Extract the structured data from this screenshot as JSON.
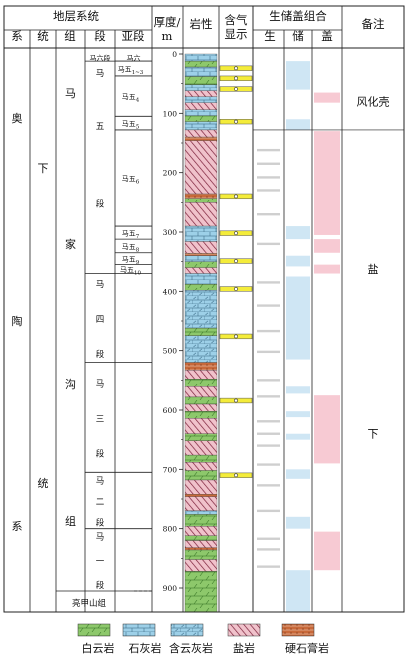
{
  "header": {
    "stratigraphy": "地层系统",
    "system": "系",
    "series": "统",
    "formation": "组",
    "member": "段",
    "submember": "亚段",
    "thickness_line1": "厚度/",
    "thickness_line2": "m",
    "lithology": "岩性",
    "gas_line1": "含气",
    "gas_line2": "显示",
    "assemblage": "生储盖组合",
    "source": "生",
    "reservoir": "储",
    "cap": "盖",
    "remarks": "备注"
  },
  "system_chars": [
    "奥",
    "陶",
    "系"
  ],
  "series_chars": [
    "下",
    "统"
  ],
  "formation_chars": [
    "马",
    "家",
    "沟",
    "组"
  ],
  "formation_bottom": "亮甲山组",
  "members": [
    {
      "name": "马六段",
      "chars": [
        "马六段"
      ],
      "top": 0,
      "bottom": 12
    },
    {
      "name": "马五段",
      "chars": [
        "马",
        "五",
        "段"
      ],
      "top": 12,
      "bottom": 370
    },
    {
      "name": "马四段",
      "chars": [
        "马",
        "四",
        "段"
      ],
      "top": 370,
      "bottom": 520
    },
    {
      "name": "马三段",
      "chars": [
        "马",
        "三",
        "段"
      ],
      "top": 520,
      "bottom": 705
    },
    {
      "name": "马二段",
      "chars": [
        "马",
        "二",
        "段"
      ],
      "top": 705,
      "bottom": 800
    },
    {
      "name": "马一段",
      "chars": [
        "马",
        "一",
        "段"
      ],
      "top": 800,
      "bottom": 905
    }
  ],
  "submembers": [
    {
      "base": "马六",
      "sub": "",
      "top": 0,
      "bottom": 12
    },
    {
      "base": "马五",
      "sub": "1~3",
      "top": 12,
      "bottom": 37
    },
    {
      "base": "马五",
      "sub": "4",
      "top": 37,
      "bottom": 105
    },
    {
      "base": "马五",
      "sub": "5",
      "top": 105,
      "bottom": 128
    },
    {
      "base": "马五",
      "sub": "6",
      "top": 128,
      "bottom": 290
    },
    {
      "base": "马五",
      "sub": "7",
      "top": 290,
      "bottom": 312
    },
    {
      "base": "马五",
      "sub": "8",
      "top": 312,
      "bottom": 335
    },
    {
      "base": "马五",
      "sub": "9",
      "top": 335,
      "bottom": 355
    },
    {
      "base": "马五",
      "sub": "10",
      "top": 355,
      "bottom": 370
    }
  ],
  "depth_axis": {
    "unit": "m",
    "min": 0,
    "max": 940,
    "ticks": [
      0,
      100,
      200,
      300,
      400,
      500,
      600,
      700,
      800,
      900
    ]
  },
  "lithology_column": [
    {
      "top": 0,
      "bottom": 12,
      "type": "limestone"
    },
    {
      "top": 12,
      "bottom": 22,
      "type": "dolomite"
    },
    {
      "top": 22,
      "bottom": 38,
      "type": "limestone"
    },
    {
      "top": 38,
      "bottom": 52,
      "type": "dolomite"
    },
    {
      "top": 52,
      "bottom": 62,
      "type": "limestone"
    },
    {
      "top": 62,
      "bottom": 72,
      "type": "salt"
    },
    {
      "top": 72,
      "bottom": 82,
      "type": "limestone"
    },
    {
      "top": 82,
      "bottom": 94,
      "type": "salt"
    },
    {
      "top": 94,
      "bottom": 104,
      "type": "limestone"
    },
    {
      "top": 104,
      "bottom": 114,
      "type": "dolomite"
    },
    {
      "top": 114,
      "bottom": 128,
      "type": "limestone"
    },
    {
      "top": 128,
      "bottom": 140,
      "type": "salt"
    },
    {
      "top": 140,
      "bottom": 146,
      "type": "anhydrite"
    },
    {
      "top": 146,
      "bottom": 236,
      "type": "salt"
    },
    {
      "top": 236,
      "bottom": 244,
      "type": "anhydrite"
    },
    {
      "top": 244,
      "bottom": 250,
      "type": "dolomite"
    },
    {
      "top": 250,
      "bottom": 290,
      "type": "salt"
    },
    {
      "top": 290,
      "bottom": 316,
      "type": "limestone"
    },
    {
      "top": 316,
      "bottom": 336,
      "type": "salt"
    },
    {
      "top": 336,
      "bottom": 340,
      "type": "anhydrite"
    },
    {
      "top": 340,
      "bottom": 350,
      "type": "limestone"
    },
    {
      "top": 350,
      "bottom": 360,
      "type": "dolomite"
    },
    {
      "top": 360,
      "bottom": 370,
      "type": "salt"
    },
    {
      "top": 370,
      "bottom": 388,
      "type": "limestone"
    },
    {
      "top": 388,
      "bottom": 398,
      "type": "dolomite"
    },
    {
      "top": 398,
      "bottom": 462,
      "type": "dolomitic_limestone"
    },
    {
      "top": 462,
      "bottom": 475,
      "type": "dolomite"
    },
    {
      "top": 475,
      "bottom": 520,
      "type": "dolomitic_limestone"
    },
    {
      "top": 520,
      "bottom": 533,
      "type": "anhydrite"
    },
    {
      "top": 533,
      "bottom": 548,
      "type": "salt"
    },
    {
      "top": 548,
      "bottom": 560,
      "type": "dolomite"
    },
    {
      "top": 560,
      "bottom": 578,
      "type": "salt"
    },
    {
      "top": 578,
      "bottom": 590,
      "type": "dolomite"
    },
    {
      "top": 590,
      "bottom": 602,
      "type": "salt"
    },
    {
      "top": 602,
      "bottom": 614,
      "type": "dolomite"
    },
    {
      "top": 614,
      "bottom": 640,
      "type": "salt"
    },
    {
      "top": 640,
      "bottom": 652,
      "type": "dolomite"
    },
    {
      "top": 652,
      "bottom": 676,
      "type": "salt"
    },
    {
      "top": 676,
      "bottom": 688,
      "type": "dolomite"
    },
    {
      "top": 688,
      "bottom": 702,
      "type": "salt"
    },
    {
      "top": 702,
      "bottom": 718,
      "type": "dolomite"
    },
    {
      "top": 718,
      "bottom": 742,
      "type": "salt"
    },
    {
      "top": 742,
      "bottom": 746,
      "type": "anhydrite"
    },
    {
      "top": 746,
      "bottom": 770,
      "type": "salt"
    },
    {
      "top": 770,
      "bottom": 776,
      "type": "limestone"
    },
    {
      "top": 776,
      "bottom": 796,
      "type": "dolomite"
    },
    {
      "top": 796,
      "bottom": 812,
      "type": "salt"
    },
    {
      "top": 812,
      "bottom": 820,
      "type": "dolomite"
    },
    {
      "top": 820,
      "bottom": 832,
      "type": "salt"
    },
    {
      "top": 832,
      "bottom": 836,
      "type": "anhydrite"
    },
    {
      "top": 836,
      "bottom": 852,
      "type": "dolomite"
    },
    {
      "top": 852,
      "bottom": 872,
      "type": "salt"
    },
    {
      "top": 872,
      "bottom": 940,
      "type": "dolomite"
    }
  ],
  "gas_shows": [
    {
      "top": 20,
      "bottom": 28
    },
    {
      "top": 37,
      "bottom": 45
    },
    {
      "top": 55,
      "bottom": 63
    },
    {
      "top": 110,
      "bottom": 118
    },
    {
      "top": 236,
      "bottom": 244
    },
    {
      "top": 298,
      "bottom": 306
    },
    {
      "top": 345,
      "bottom": 353
    },
    {
      "top": 392,
      "bottom": 400
    },
    {
      "top": 472,
      "bottom": 480
    },
    {
      "top": 580,
      "bottom": 588
    },
    {
      "top": 706,
      "bottom": 714
    }
  ],
  "source_bands": [
    {
      "top": 160,
      "bottom": 164
    },
    {
      "top": 183,
      "bottom": 187
    },
    {
      "top": 206,
      "bottom": 210
    },
    {
      "top": 228,
      "bottom": 232
    },
    {
      "top": 268,
      "bottom": 272
    },
    {
      "top": 318,
      "bottom": 322
    },
    {
      "top": 383,
      "bottom": 387
    },
    {
      "top": 422,
      "bottom": 426
    },
    {
      "top": 465,
      "bottom": 469
    },
    {
      "top": 500,
      "bottom": 504
    },
    {
      "top": 548,
      "bottom": 552
    },
    {
      "top": 575,
      "bottom": 579
    },
    {
      "top": 617,
      "bottom": 621
    },
    {
      "top": 638,
      "bottom": 642
    },
    {
      "top": 658,
      "bottom": 662
    },
    {
      "top": 690,
      "bottom": 694
    },
    {
      "top": 725,
      "bottom": 729
    },
    {
      "top": 768,
      "bottom": 772
    },
    {
      "top": 815,
      "bottom": 819
    },
    {
      "top": 833,
      "bottom": 837
    },
    {
      "top": 862,
      "bottom": 866
    }
  ],
  "reservoir_bands": [
    {
      "top": 12,
      "bottom": 60
    },
    {
      "top": 110,
      "bottom": 128
    },
    {
      "top": 290,
      "bottom": 312
    },
    {
      "top": 340,
      "bottom": 358
    },
    {
      "top": 375,
      "bottom": 515
    },
    {
      "top": 560,
      "bottom": 572
    },
    {
      "top": 602,
      "bottom": 612
    },
    {
      "top": 640,
      "bottom": 650
    },
    {
      "top": 700,
      "bottom": 716
    },
    {
      "top": 780,
      "bottom": 800
    },
    {
      "top": 870,
      "bottom": 940
    }
  ],
  "cap_bands": [
    {
      "top": 65,
      "bottom": 82
    },
    {
      "top": 130,
      "bottom": 305
    },
    {
      "top": 312,
      "bottom": 335
    },
    {
      "top": 355,
      "bottom": 370
    },
    {
      "top": 575,
      "bottom": 690
    },
    {
      "top": 805,
      "bottom": 870
    }
  ],
  "remarks": [
    {
      "text": "风化壳",
      "depth": 80
    },
    {
      "text": "盐",
      "depth": 362
    },
    {
      "text": "下",
      "depth": 640
    }
  ],
  "legend": [
    {
      "type": "dolomite",
      "label": "白云岩"
    },
    {
      "type": "limestone",
      "label": "石灰岩"
    },
    {
      "type": "dolomitic_limestone",
      "label": "含云灰岩"
    },
    {
      "type": "salt",
      "label": "盐岩"
    },
    {
      "type": "anhydrite",
      "label": "硬石膏岩"
    }
  ],
  "colors": {
    "dolomite": "#8dc86b",
    "limestone": "#9dd0e8",
    "salt": "#f0c2cb",
    "salt_hatch": "#7a1e38",
    "anhydrite": "#c8693a",
    "gas": "#f4ec3a",
    "source": "#cfcfcf",
    "reservoir": "#cfe6f4",
    "cap": "#f7cad3",
    "line": "#222222"
  }
}
